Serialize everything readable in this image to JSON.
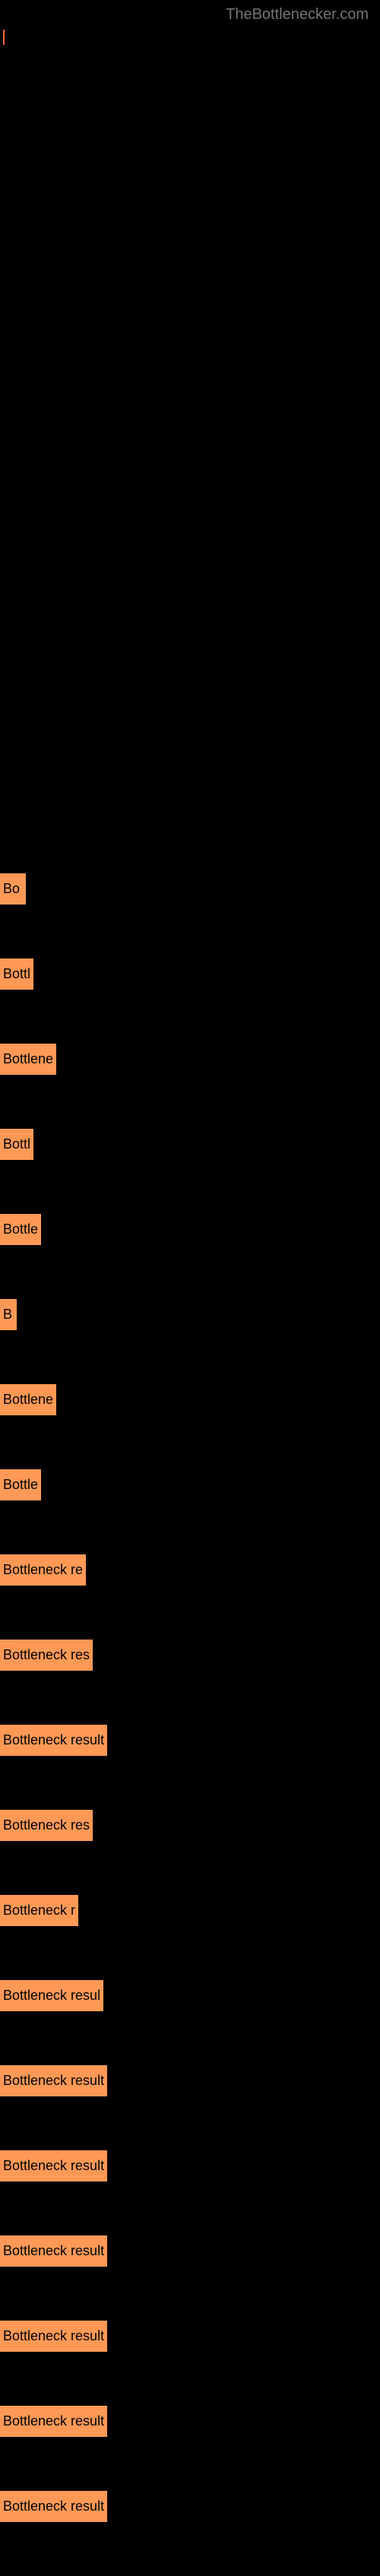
{
  "site_title": "TheBottlenecker.com",
  "bar_color": "#ff9955",
  "text_color": "#000000",
  "background_color": "#000000",
  "title_color": "#757575",
  "bars": [
    {
      "label": "Bo",
      "width": 26
    },
    {
      "label": "Bottl",
      "width": 36
    },
    {
      "label": "Bottlene",
      "width": 57
    },
    {
      "label": "Bottl",
      "width": 36
    },
    {
      "label": "Bottle",
      "width": 42
    },
    {
      "label": "B",
      "width": 14
    },
    {
      "label": "Bottlene",
      "width": 58
    },
    {
      "label": "Bottle",
      "width": 42
    },
    {
      "label": "Bottleneck re",
      "width": 90
    },
    {
      "label": "Bottleneck res",
      "width": 96
    },
    {
      "label": "Bottleneck result",
      "width": 112
    },
    {
      "label": "Bottleneck res",
      "width": 98
    },
    {
      "label": "Bottleneck r",
      "width": 84
    },
    {
      "label": "Bottleneck resul",
      "width": 108
    },
    {
      "label": "Bottleneck result",
      "width": 120
    },
    {
      "label": "Bottleneck result",
      "width": 124
    },
    {
      "label": "Bottleneck result",
      "width": 116
    },
    {
      "label": "Bottleneck result",
      "width": 116
    },
    {
      "label": "Bottleneck result",
      "width": 116
    },
    {
      "label": "Bottleneck result",
      "width": 124
    }
  ]
}
